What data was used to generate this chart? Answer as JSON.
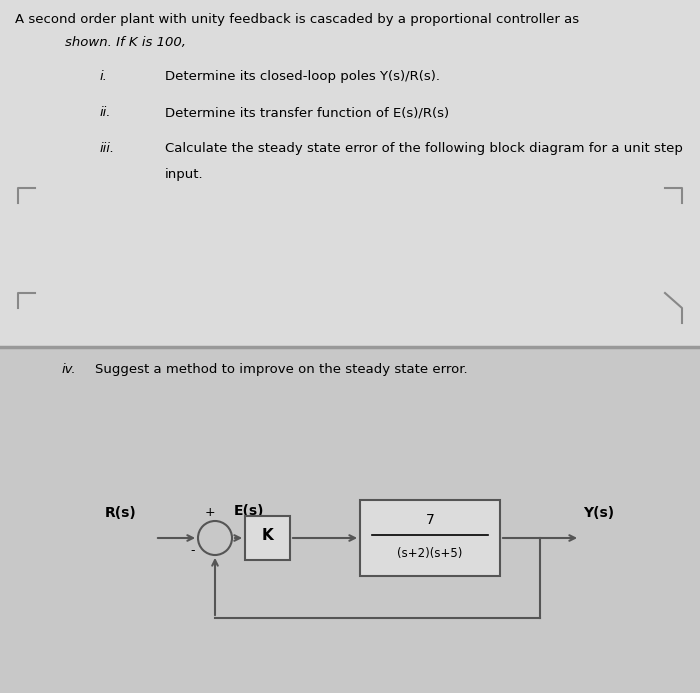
{
  "bg_color": "#c8c8c8",
  "upper_bg": "#dcdcdc",
  "lower_bg": "#c8c8c8",
  "title_line1": "A second order plant with unity feedback is cascaded by a proportional controller as",
  "title_line2": "shown. If K is 100,",
  "item_i_num": "i.",
  "item_i_text": "Determine its closed-loop poles Y(s)/R(s).",
  "item_ii_num": "ii.",
  "item_ii_text": "Determine its transfer function of E(s)/R(s)",
  "item_iii_num": "iii.",
  "item_iii_text": "Calculate the steady state error of the following block diagram for a unit step",
  "item_iii_cont": "input.",
  "item_iv_num": "iv.",
  "item_iv_text": "Suggest a method to improve on the steady state error.",
  "Rs_label": "R(s)",
  "Es_label": "E(s)",
  "Ys_label": "Y(s)",
  "K_label": "K",
  "plant_num": "7",
  "plant_den": "(s+2)(s+5)",
  "plus_sign": "+",
  "minus_sign": "-",
  "bracket_color": "#888888",
  "line_color": "#555555",
  "separator_color": "#999999"
}
